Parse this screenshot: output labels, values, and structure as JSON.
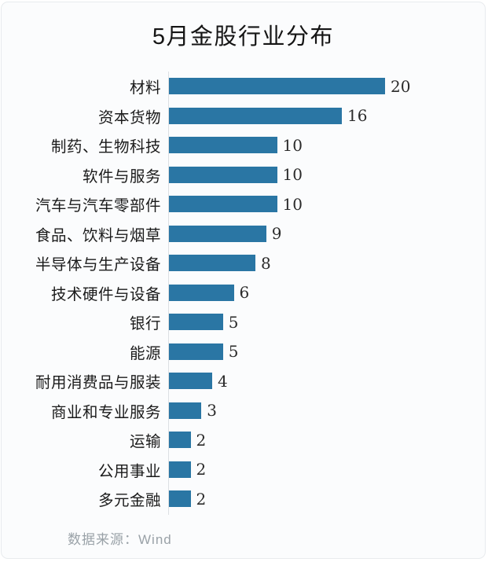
{
  "card": {
    "title": "5月金股行业分布",
    "source_note": "数据来源：Wind"
  },
  "chart_data": {
    "type": "bar",
    "orientation": "horizontal",
    "title": "5月金股行业分布",
    "categories": [
      "材料",
      "资本货物",
      "制药、生物科技",
      "软件与服务",
      "汽车与汽车零部件",
      "食品、饮料与烟草",
      "半导体与生产设备",
      "技术硬件与设备",
      "银行",
      "能源",
      "耐用消费品与服装",
      "商业和专业服务",
      "运输",
      "公用事业",
      "多元金融"
    ],
    "values": [
      20,
      16,
      10,
      10,
      10,
      9,
      8,
      6,
      5,
      5,
      4,
      3,
      2,
      2,
      2
    ],
    "xlim": [
      0,
      20
    ],
    "value_labels_shown": true,
    "grid": "off",
    "legend": "none",
    "source": "数据来源：Wind"
  },
  "colors": {
    "bar": "#2a76a4",
    "card_background": "#fbfcfd",
    "card_border": "#e8ebee",
    "axis_line": "#dde0e3",
    "title_text": "#151515",
    "category_text": "#1a1a1a",
    "value_text": "#2b2b2b",
    "source_text": "#9aa2a8"
  }
}
